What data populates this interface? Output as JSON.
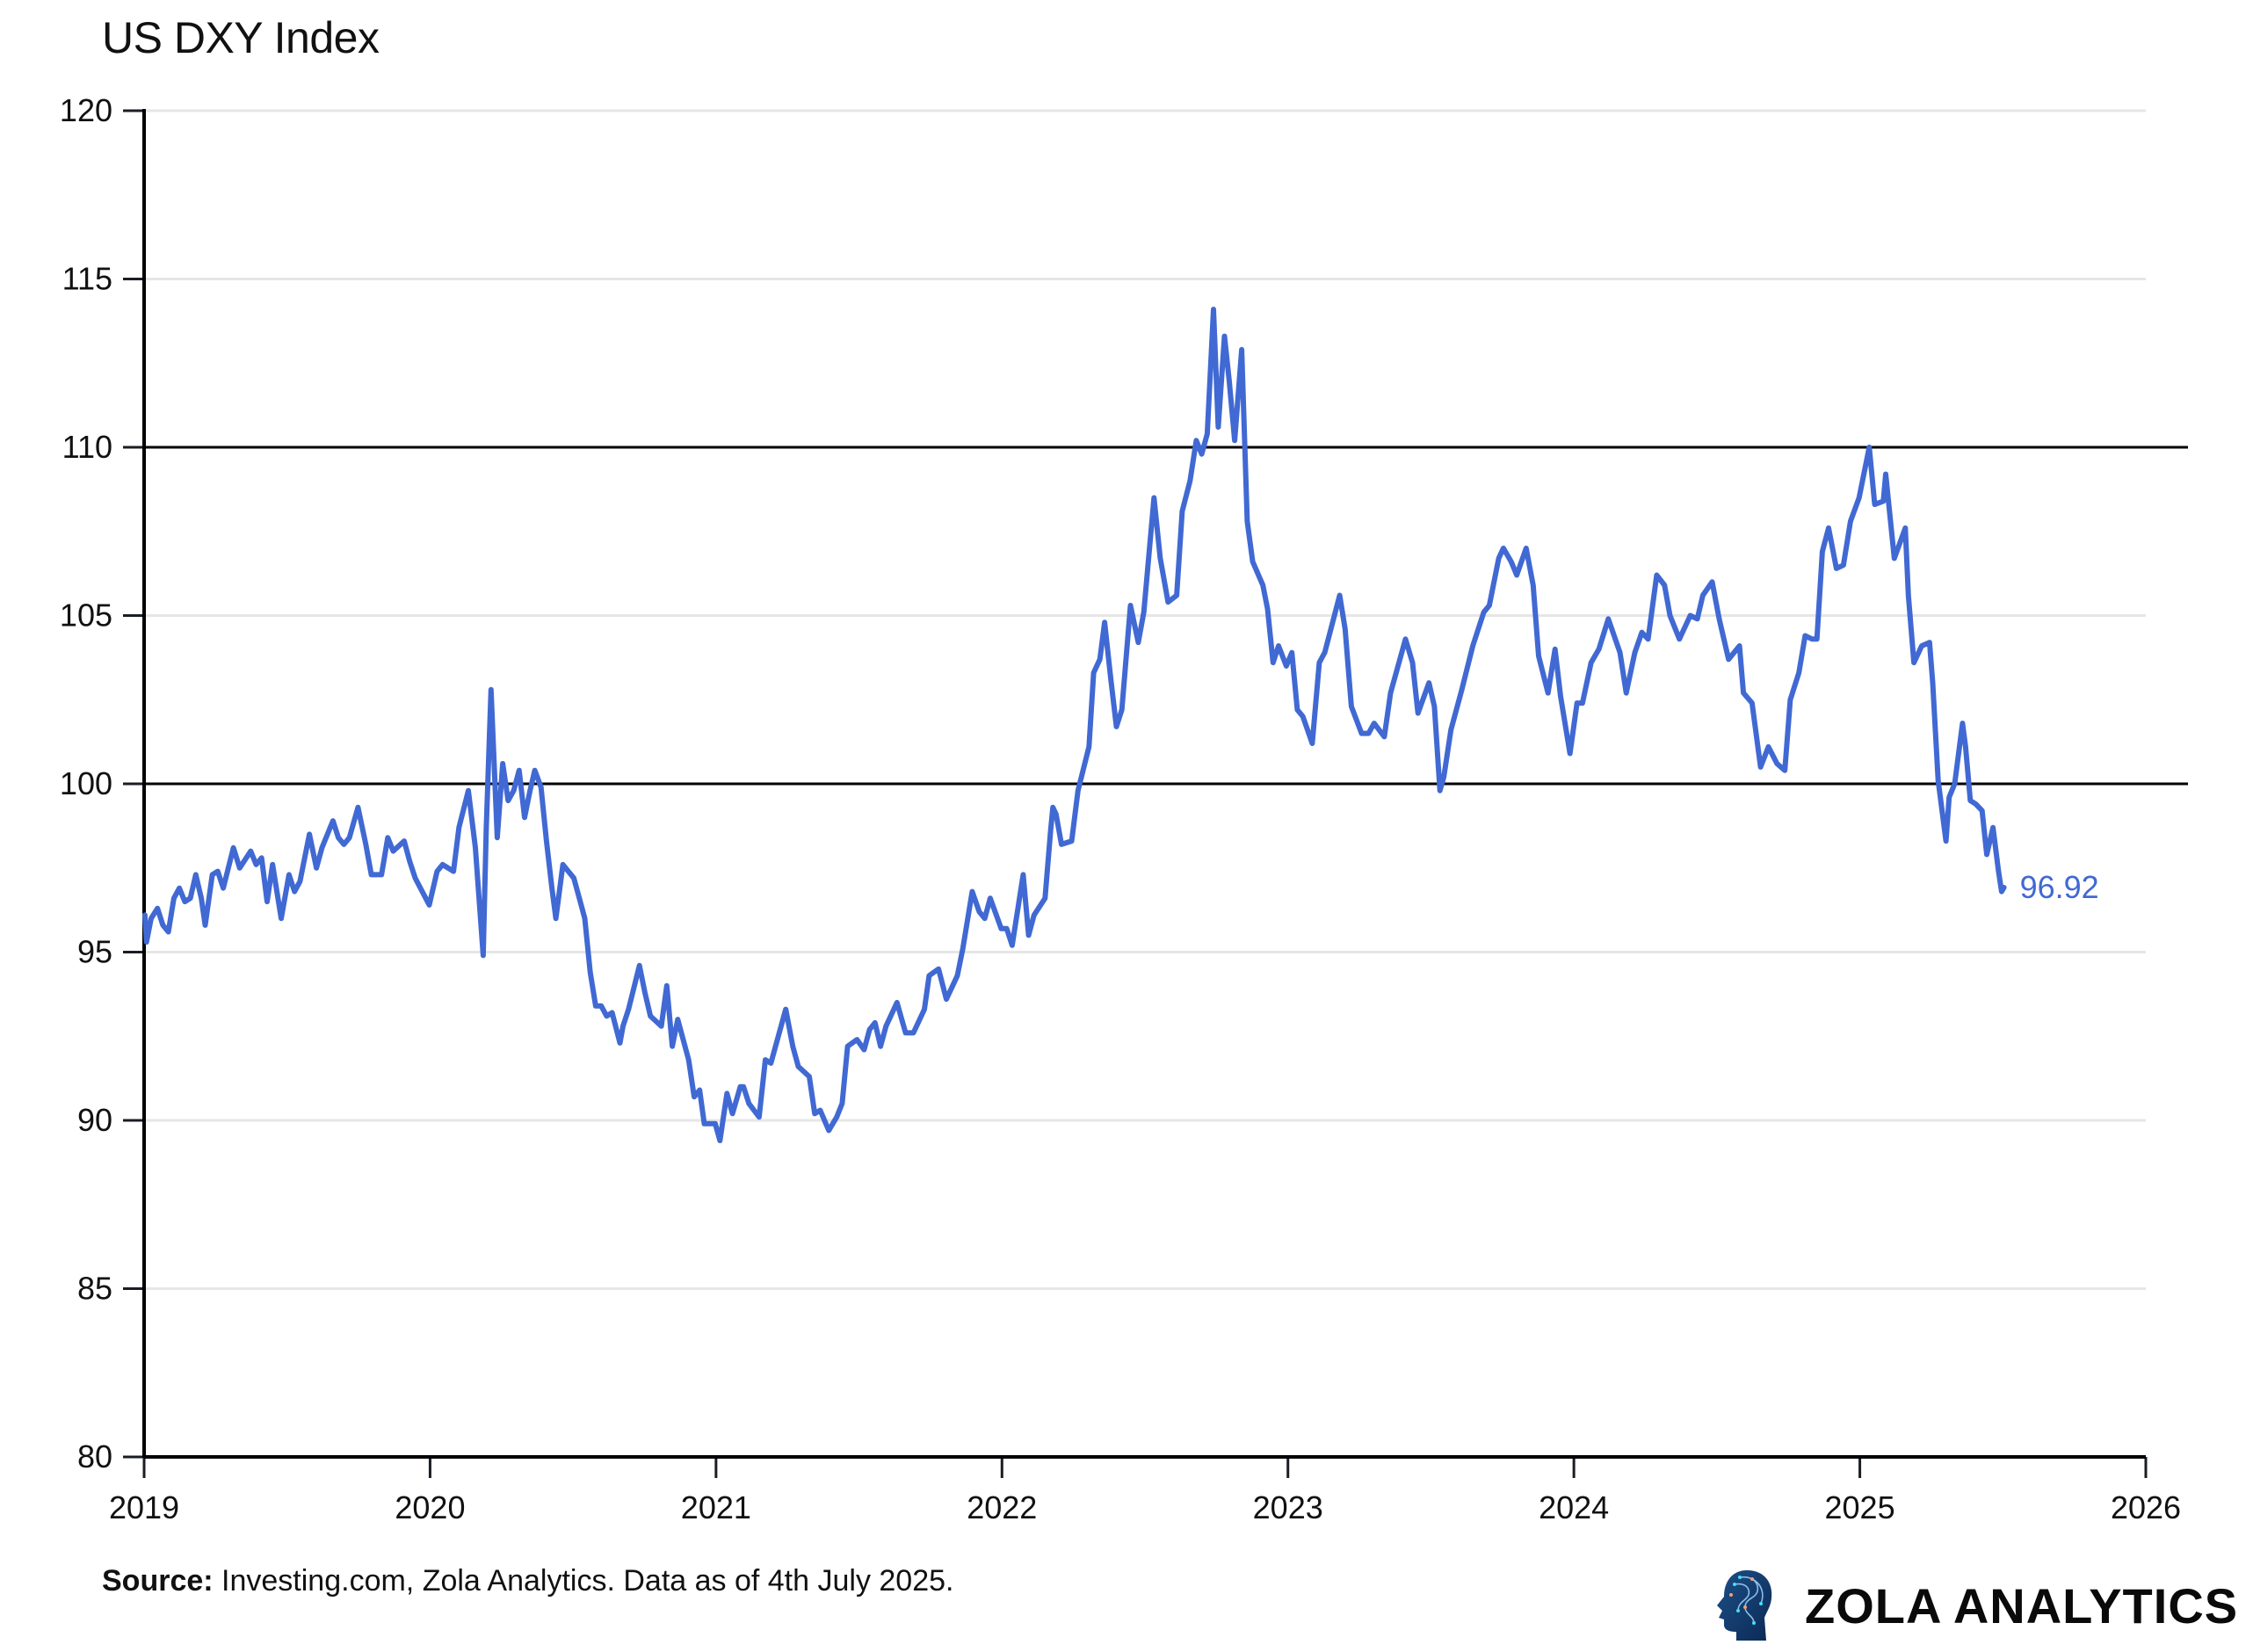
{
  "source": {
    "label": "Source:",
    "text": "Investing.com, Zola Analytics. Data as of 4th July 2025."
  },
  "logo": {
    "text": "ZOLA ANALYTICS",
    "icon": "head-circuit-icon"
  },
  "chart_data": {
    "type": "line",
    "title": "US DXY Index",
    "xlabel": "",
    "ylabel": "",
    "xlim": [
      "2019-01-01",
      "2026-01-01"
    ],
    "ylim": [
      80,
      120
    ],
    "xticks": [
      "2019",
      "2020",
      "2021",
      "2022",
      "2023",
      "2024",
      "2025",
      "2026"
    ],
    "yticks": [
      "80",
      "85",
      "90",
      "95",
      "100",
      "105",
      "110",
      "115",
      "120"
    ],
    "grid": "horizontal",
    "reference_lines": [
      100,
      110
    ],
    "line_color": "#4169d3",
    "last_value_label": "96.92",
    "series": [
      {
        "points": [
          [
            "2019-01-02",
            96.1
          ],
          [
            "2019-01-04",
            95.3
          ],
          [
            "2019-01-10",
            96.0
          ],
          [
            "2019-01-18",
            96.3
          ],
          [
            "2019-01-25",
            95.8
          ],
          [
            "2019-02-01",
            95.6
          ],
          [
            "2019-02-08",
            96.6
          ],
          [
            "2019-02-15",
            96.9
          ],
          [
            "2019-02-22",
            96.5
          ],
          [
            "2019-03-01",
            96.6
          ],
          [
            "2019-03-08",
            97.3
          ],
          [
            "2019-03-15",
            96.6
          ],
          [
            "2019-03-20",
            95.8
          ],
          [
            "2019-03-29",
            97.3
          ],
          [
            "2019-04-05",
            97.4
          ],
          [
            "2019-04-12",
            96.9
          ],
          [
            "2019-04-25",
            98.1
          ],
          [
            "2019-05-03",
            97.5
          ],
          [
            "2019-05-17",
            98.0
          ],
          [
            "2019-05-24",
            97.6
          ],
          [
            "2019-05-31",
            97.8
          ],
          [
            "2019-06-07",
            96.5
          ],
          [
            "2019-06-14",
            97.6
          ],
          [
            "2019-06-25",
            96.0
          ],
          [
            "2019-07-05",
            97.3
          ],
          [
            "2019-07-12",
            96.8
          ],
          [
            "2019-07-19",
            97.1
          ],
          [
            "2019-07-31",
            98.5
          ],
          [
            "2019-08-09",
            97.5
          ],
          [
            "2019-08-16",
            98.1
          ],
          [
            "2019-08-30",
            98.9
          ],
          [
            "2019-09-06",
            98.4
          ],
          [
            "2019-09-13",
            98.2
          ],
          [
            "2019-09-20",
            98.4
          ],
          [
            "2019-10-01",
            99.3
          ],
          [
            "2019-10-11",
            98.2
          ],
          [
            "2019-10-18",
            97.3
          ],
          [
            "2019-10-31",
            97.3
          ],
          [
            "2019-11-08",
            98.4
          ],
          [
            "2019-11-15",
            98.0
          ],
          [
            "2019-11-29",
            98.3
          ],
          [
            "2019-12-06",
            97.7
          ],
          [
            "2019-12-13",
            97.2
          ],
          [
            "2019-12-31",
            96.4
          ],
          [
            "2020-01-10",
            97.4
          ],
          [
            "2020-01-17",
            97.6
          ],
          [
            "2020-01-31",
            97.4
          ],
          [
            "2020-02-07",
            98.7
          ],
          [
            "2020-02-19",
            99.8
          ],
          [
            "2020-02-28",
            98.1
          ],
          [
            "2020-03-09",
            94.9
          ],
          [
            "2020-03-13",
            98.7
          ],
          [
            "2020-03-19",
            102.8
          ],
          [
            "2020-03-27",
            98.4
          ],
          [
            "2020-04-03",
            100.6
          ],
          [
            "2020-04-10",
            99.5
          ],
          [
            "2020-04-17",
            99.8
          ],
          [
            "2020-04-24",
            100.4
          ],
          [
            "2020-05-01",
            99.0
          ],
          [
            "2020-05-08",
            99.8
          ],
          [
            "2020-05-14",
            100.4
          ],
          [
            "2020-05-22",
            99.9
          ],
          [
            "2020-05-29",
            98.3
          ],
          [
            "2020-06-05",
            96.9
          ],
          [
            "2020-06-10",
            96.0
          ],
          [
            "2020-06-19",
            97.6
          ],
          [
            "2020-06-26",
            97.4
          ],
          [
            "2020-07-03",
            97.2
          ],
          [
            "2020-07-10",
            96.6
          ],
          [
            "2020-07-17",
            96.0
          ],
          [
            "2020-07-24",
            94.4
          ],
          [
            "2020-07-31",
            93.4
          ],
          [
            "2020-08-07",
            93.4
          ],
          [
            "2020-08-14",
            93.1
          ],
          [
            "2020-08-21",
            93.2
          ],
          [
            "2020-08-31",
            92.3
          ],
          [
            "2020-09-04",
            92.8
          ],
          [
            "2020-09-11",
            93.3
          ],
          [
            "2020-09-25",
            94.6
          ],
          [
            "2020-10-02",
            93.8
          ],
          [
            "2020-10-09",
            93.1
          ],
          [
            "2020-10-23",
            92.8
          ],
          [
            "2020-10-30",
            94.0
          ],
          [
            "2020-11-06",
            92.2
          ],
          [
            "2020-11-13",
            93.0
          ],
          [
            "2020-11-27",
            91.8
          ],
          [
            "2020-12-04",
            90.7
          ],
          [
            "2020-12-11",
            90.9
          ],
          [
            "2020-12-17",
            89.9
          ],
          [
            "2020-12-31",
            89.9
          ],
          [
            "2021-01-06",
            89.4
          ],
          [
            "2021-01-15",
            90.8
          ],
          [
            "2021-01-22",
            90.2
          ],
          [
            "2021-02-01",
            91.0
          ],
          [
            "2021-02-05",
            91.0
          ],
          [
            "2021-02-12",
            90.5
          ],
          [
            "2021-02-25",
            90.1
          ],
          [
            "2021-03-05",
            91.8
          ],
          [
            "2021-03-12",
            91.7
          ],
          [
            "2021-03-31",
            93.3
          ],
          [
            "2021-04-09",
            92.2
          ],
          [
            "2021-04-16",
            91.6
          ],
          [
            "2021-04-30",
            91.3
          ],
          [
            "2021-05-07",
            90.2
          ],
          [
            "2021-05-14",
            90.3
          ],
          [
            "2021-05-25",
            89.7
          ],
          [
            "2021-06-04",
            90.1
          ],
          [
            "2021-06-11",
            90.5
          ],
          [
            "2021-06-18",
            92.2
          ],
          [
            "2021-06-30",
            92.4
          ],
          [
            "2021-07-09",
            92.1
          ],
          [
            "2021-07-16",
            92.7
          ],
          [
            "2021-07-23",
            92.9
          ],
          [
            "2021-07-30",
            92.2
          ],
          [
            "2021-08-06",
            92.8
          ],
          [
            "2021-08-20",
            93.5
          ],
          [
            "2021-08-31",
            92.6
          ],
          [
            "2021-09-10",
            92.6
          ],
          [
            "2021-09-24",
            93.3
          ],
          [
            "2021-09-30",
            94.3
          ],
          [
            "2021-10-12",
            94.5
          ],
          [
            "2021-10-22",
            93.6
          ],
          [
            "2021-11-05",
            94.3
          ],
          [
            "2021-11-12",
            95.1
          ],
          [
            "2021-11-24",
            96.8
          ],
          [
            "2021-12-03",
            96.2
          ],
          [
            "2021-12-10",
            96.0
          ],
          [
            "2021-12-17",
            96.6
          ],
          [
            "2021-12-31",
            95.7
          ],
          [
            "2022-01-07",
            95.7
          ],
          [
            "2022-01-14",
            95.2
          ],
          [
            "2022-01-28",
            97.3
          ],
          [
            "2022-02-04",
            95.5
          ],
          [
            "2022-02-11",
            96.1
          ],
          [
            "2022-02-25",
            96.6
          ],
          [
            "2022-03-04",
            98.6
          ],
          [
            "2022-03-07",
            99.3
          ],
          [
            "2022-03-11",
            99.1
          ],
          [
            "2022-03-18",
            98.2
          ],
          [
            "2022-03-31",
            98.3
          ],
          [
            "2022-04-08",
            99.8
          ],
          [
            "2022-04-22",
            101.1
          ],
          [
            "2022-04-28",
            103.3
          ],
          [
            "2022-05-06",
            103.7
          ],
          [
            "2022-05-12",
            104.8
          ],
          [
            "2022-05-20",
            103.1
          ],
          [
            "2022-05-27",
            101.7
          ],
          [
            "2022-06-03",
            102.2
          ],
          [
            "2022-06-14",
            105.3
          ],
          [
            "2022-06-24",
            104.2
          ],
          [
            "2022-07-01",
            105.1
          ],
          [
            "2022-07-14",
            108.5
          ],
          [
            "2022-07-22",
            106.7
          ],
          [
            "2022-08-01",
            105.4
          ],
          [
            "2022-08-12",
            105.6
          ],
          [
            "2022-08-19",
            108.1
          ],
          [
            "2022-08-29",
            109.0
          ],
          [
            "2022-09-06",
            110.2
          ],
          [
            "2022-09-13",
            109.8
          ],
          [
            "2022-09-20",
            110.4
          ],
          [
            "2022-09-28",
            114.1
          ],
          [
            "2022-10-04",
            110.6
          ],
          [
            "2022-10-12",
            113.3
          ],
          [
            "2022-10-18",
            112.0
          ],
          [
            "2022-10-25",
            110.2
          ],
          [
            "2022-11-03",
            112.9
          ],
          [
            "2022-11-10",
            107.8
          ],
          [
            "2022-11-17",
            106.6
          ],
          [
            "2022-11-30",
            105.9
          ],
          [
            "2022-12-06",
            105.2
          ],
          [
            "2022-12-13",
            103.6
          ],
          [
            "2022-12-20",
            104.1
          ],
          [
            "2022-12-30",
            103.5
          ],
          [
            "2023-01-06",
            103.9
          ],
          [
            "2023-01-13",
            102.2
          ],
          [
            "2023-01-20",
            102.0
          ],
          [
            "2023-02-01",
            101.2
          ],
          [
            "2023-02-10",
            103.6
          ],
          [
            "2023-02-17",
            103.9
          ],
          [
            "2023-03-08",
            105.6
          ],
          [
            "2023-03-15",
            104.6
          ],
          [
            "2023-03-23",
            102.3
          ],
          [
            "2023-04-05",
            101.5
          ],
          [
            "2023-04-14",
            101.5
          ],
          [
            "2023-04-21",
            101.8
          ],
          [
            "2023-05-04",
            101.4
          ],
          [
            "2023-05-12",
            102.7
          ],
          [
            "2023-05-31",
            104.3
          ],
          [
            "2023-06-09",
            103.6
          ],
          [
            "2023-06-16",
            102.1
          ],
          [
            "2023-06-30",
            103.0
          ],
          [
            "2023-07-07",
            102.3
          ],
          [
            "2023-07-14",
            99.8
          ],
          [
            "2023-07-19",
            100.2
          ],
          [
            "2023-07-28",
            101.6
          ],
          [
            "2023-08-11",
            102.8
          ],
          [
            "2023-08-25",
            104.1
          ],
          [
            "2023-09-08",
            105.1
          ],
          [
            "2023-09-15",
            105.3
          ],
          [
            "2023-09-27",
            106.7
          ],
          [
            "2023-10-03",
            107.0
          ],
          [
            "2023-10-13",
            106.6
          ],
          [
            "2023-10-20",
            106.2
          ],
          [
            "2023-11-01",
            107.0
          ],
          [
            "2023-11-10",
            105.9
          ],
          [
            "2023-11-17",
            103.8
          ],
          [
            "2023-11-29",
            102.7
          ],
          [
            "2023-12-08",
            104.0
          ],
          [
            "2023-12-15",
            102.6
          ],
          [
            "2023-12-27",
            100.9
          ],
          [
            "2024-01-05",
            102.4
          ],
          [
            "2024-01-12",
            102.4
          ],
          [
            "2024-01-23",
            103.6
          ],
          [
            "2024-02-02",
            104.0
          ],
          [
            "2024-02-14",
            104.9
          ],
          [
            "2024-02-29",
            103.9
          ],
          [
            "2024-03-08",
            102.7
          ],
          [
            "2024-03-19",
            103.9
          ],
          [
            "2024-03-28",
            104.5
          ],
          [
            "2024-04-05",
            104.3
          ],
          [
            "2024-04-16",
            106.2
          ],
          [
            "2024-04-26",
            105.9
          ],
          [
            "2024-05-03",
            105.0
          ],
          [
            "2024-05-15",
            104.3
          ],
          [
            "2024-05-29",
            105.0
          ],
          [
            "2024-06-07",
            104.9
          ],
          [
            "2024-06-14",
            105.6
          ],
          [
            "2024-06-26",
            106.0
          ],
          [
            "2024-07-05",
            104.9
          ],
          [
            "2024-07-17",
            103.7
          ],
          [
            "2024-07-31",
            104.1
          ],
          [
            "2024-08-05",
            102.7
          ],
          [
            "2024-08-16",
            102.4
          ],
          [
            "2024-08-27",
            100.5
          ],
          [
            "2024-09-06",
            101.1
          ],
          [
            "2024-09-17",
            100.6
          ],
          [
            "2024-09-27",
            100.4
          ],
          [
            "2024-10-04",
            102.5
          ],
          [
            "2024-10-15",
            103.3
          ],
          [
            "2024-10-23",
            104.4
          ],
          [
            "2024-11-01",
            104.3
          ],
          [
            "2024-11-07",
            104.3
          ],
          [
            "2024-11-14",
            106.9
          ],
          [
            "2024-11-22",
            107.6
          ],
          [
            "2024-12-02",
            106.4
          ],
          [
            "2024-12-11",
            106.5
          ],
          [
            "2024-12-20",
            107.8
          ],
          [
            "2024-12-31",
            108.5
          ],
          [
            "2025-01-13",
            110.0
          ],
          [
            "2025-01-20",
            108.3
          ],
          [
            "2025-01-31",
            108.4
          ],
          [
            "2025-02-03",
            109.2
          ],
          [
            "2025-02-14",
            106.7
          ],
          [
            "2025-02-28",
            107.6
          ],
          [
            "2025-03-04",
            105.6
          ],
          [
            "2025-03-11",
            103.6
          ],
          [
            "2025-03-21",
            104.1
          ],
          [
            "2025-03-31",
            104.2
          ],
          [
            "2025-04-04",
            103.0
          ],
          [
            "2025-04-11",
            100.1
          ],
          [
            "2025-04-21",
            98.3
          ],
          [
            "2025-04-25",
            99.6
          ],
          [
            "2025-05-02",
            100.0
          ],
          [
            "2025-05-12",
            101.8
          ],
          [
            "2025-05-16",
            101.1
          ],
          [
            "2025-05-22",
            99.5
          ],
          [
            "2025-05-29",
            99.4
          ],
          [
            "2025-06-06",
            99.2
          ],
          [
            "2025-06-12",
            97.9
          ],
          [
            "2025-06-20",
            98.7
          ],
          [
            "2025-06-27",
            97.4
          ],
          [
            "2025-07-01",
            96.8
          ],
          [
            "2025-07-04",
            96.92
          ]
        ]
      }
    ]
  }
}
